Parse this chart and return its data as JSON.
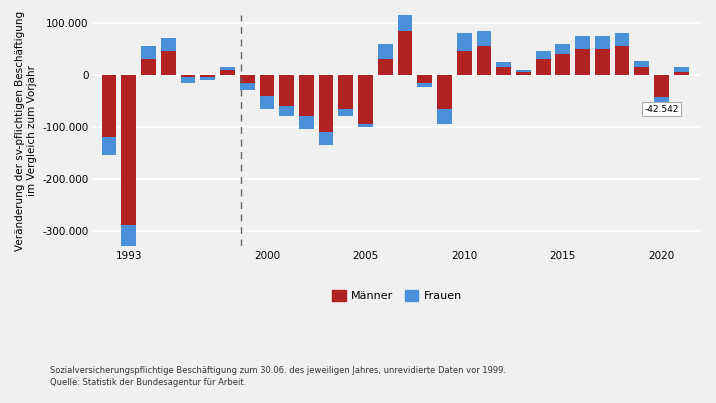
{
  "years": [
    1992,
    1993,
    1994,
    1995,
    1996,
    1997,
    1998,
    1999,
    2000,
    2001,
    2002,
    2003,
    2004,
    2005,
    2006,
    2007,
    2008,
    2009,
    2010,
    2011,
    2012,
    2013,
    2014,
    2015,
    2016,
    2017,
    2018,
    2019,
    2020,
    2021
  ],
  "maenner": [
    -120000,
    -288898,
    30000,
    45000,
    -5000,
    -5000,
    10000,
    -15000,
    -40000,
    -60000,
    -80000,
    -110000,
    -65000,
    -95000,
    30000,
    83475,
    -15000,
    -65000,
    45000,
    55000,
    15000,
    5000,
    30000,
    40000,
    50000,
    50000,
    55000,
    15000,
    -42542,
    5000
  ],
  "frauen": [
    -35000,
    -45000,
    25000,
    25000,
    -10000,
    -5000,
    5000,
    -15000,
    -25000,
    -20000,
    -25000,
    -25000,
    -15000,
    -5000,
    30000,
    35000,
    -8000,
    -30000,
    35000,
    30000,
    10000,
    5000,
    15000,
    20000,
    25000,
    25000,
    25000,
    12000,
    -12000,
    10000
  ],
  "color_maenner": "#b22222",
  "color_frauen": "#4a90d9",
  "dashed_line_x": 1998.7,
  "ylabel": "Veränderung der sv-pflichtigen Beschäftigung\nim Vergleich zum Vorjahr",
  "footnote_line1": "Sozialversicherungspflichtige Beschäftigung zum 30.06. des jeweiligen Jahres, unrevidierte Daten vor 1999.",
  "footnote_line2": "Quelle: Statistik der Bundesagentur für Arbeit.",
  "legend_maenner": "Männer",
  "legend_frauen": "Frauen",
  "background_color": "#f0f0f0",
  "grid_color": "#ffffff",
  "ann_2020_label": "-42.542"
}
